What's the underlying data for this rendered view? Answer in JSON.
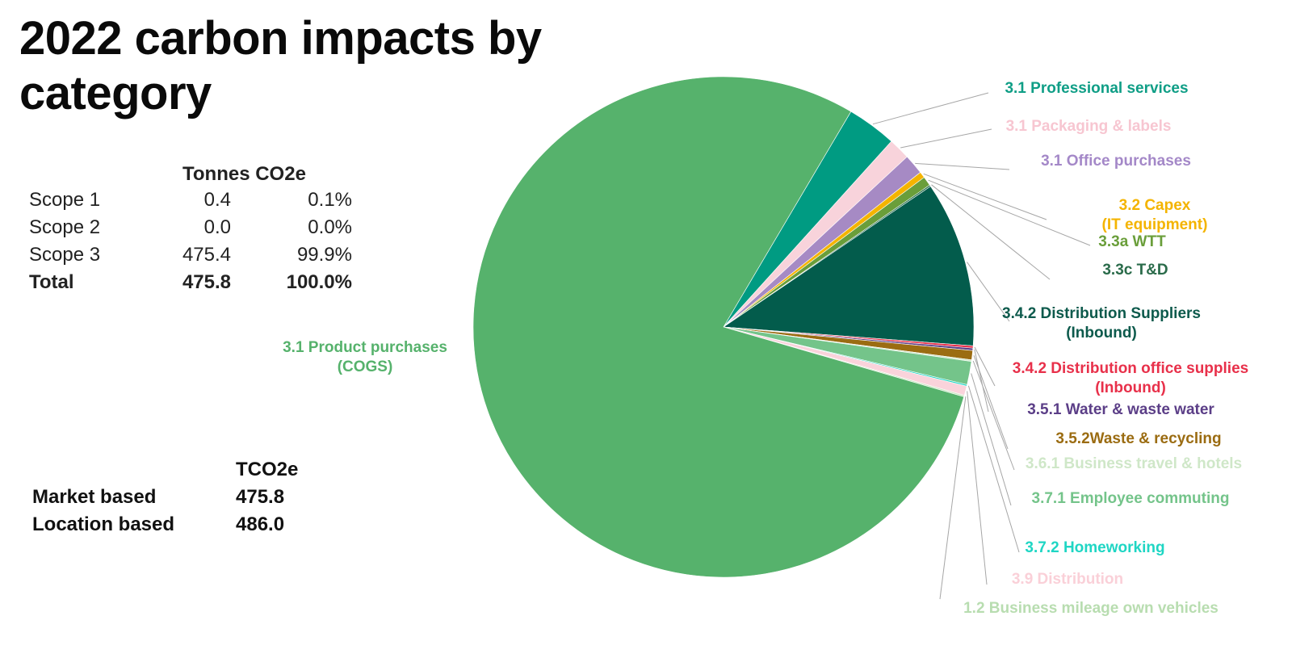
{
  "title": "2022 carbon impacts by category",
  "scope_table": {
    "header": "Tonnes CO2e",
    "rows": [
      {
        "label": "Scope 1",
        "tonnes": "0.4",
        "percent": "0.1%"
      },
      {
        "label": "Scope 2",
        "tonnes": "0.0",
        "percent": "0.0%"
      },
      {
        "label": "Scope 3",
        "tonnes": "475.4",
        "percent": "99.9%"
      },
      {
        "label": "Total",
        "tonnes": "475.8",
        "percent": "100.0%"
      }
    ]
  },
  "tco_table": {
    "header": "TCO2e",
    "rows": [
      {
        "label": "Market based",
        "value": "475.8"
      },
      {
        "label": "Location based",
        "value": "486.0"
      }
    ]
  },
  "chart_data": {
    "type": "pie",
    "title": "2022 carbon impacts by category",
    "unit": "share of total",
    "start_angle_deg": 59.4,
    "slices": [
      {
        "label": "3.1 Professional services",
        "value": 3.2,
        "color": "#009b82"
      },
      {
        "label": "3.1 Packaging & labels",
        "value": 1.4,
        "color": "#f8d3db"
      },
      {
        "label": "3.1 Office purchases",
        "value": 1.3,
        "color": "#a68ac4"
      },
      {
        "label": "3.2 Capex (IT equipment)",
        "value": 0.4,
        "color": "#f4b400"
      },
      {
        "label": "3.3a WTT",
        "value": 0.6,
        "color": "#6a9e3a"
      },
      {
        "label": "3.3c T&D",
        "value": 0.1,
        "color": "#1e6b45"
      },
      {
        "label": "3.4.2 Distribution Suppliers (Inbound)",
        "value": 10.7,
        "color": "#035c4c"
      },
      {
        "label": "3.4.2 Distribution office supplies (Inbound)",
        "value": 0.15,
        "color": "#e8304a"
      },
      {
        "label": "3.5.1 Water & waste water",
        "value": 0.15,
        "color": "#5b3e87"
      },
      {
        "label": "3.5.2Waste & recycling",
        "value": 0.6,
        "color": "#9b6c12"
      },
      {
        "label": "3.6.1 Business travel & hotels",
        "value": 0.1,
        "color": "#cfe7c8"
      },
      {
        "label": "3.7.1 Employee commuting",
        "value": 1.5,
        "color": "#74c48a"
      },
      {
        "label": "3.7.2 Homeworking",
        "value": 0.1,
        "color": "#1fd6c4"
      },
      {
        "label": "3.9 Distribution",
        "value": 0.6,
        "color": "#fad3db"
      },
      {
        "label": "1.2 Business mileage own vehicles",
        "value": 0.1,
        "color": "#c9e6c1"
      },
      {
        "label": "3.1 Product purchases (COGS)",
        "value": 79.0,
        "color": "#56b26c"
      }
    ],
    "label_colors": [
      "#0f9e86",
      "#f7c6d1",
      "#a488c8",
      "#f4b400",
      "#6a9e3a",
      "#2a6b4a",
      "#0d5a4c",
      "#e8304a",
      "#5b3e87",
      "#9b6c12",
      "#cfe7c8",
      "#74c48a",
      "#1fd6c4",
      "#fad0d8",
      "#b8ddb0",
      "#56b26c"
    ]
  }
}
